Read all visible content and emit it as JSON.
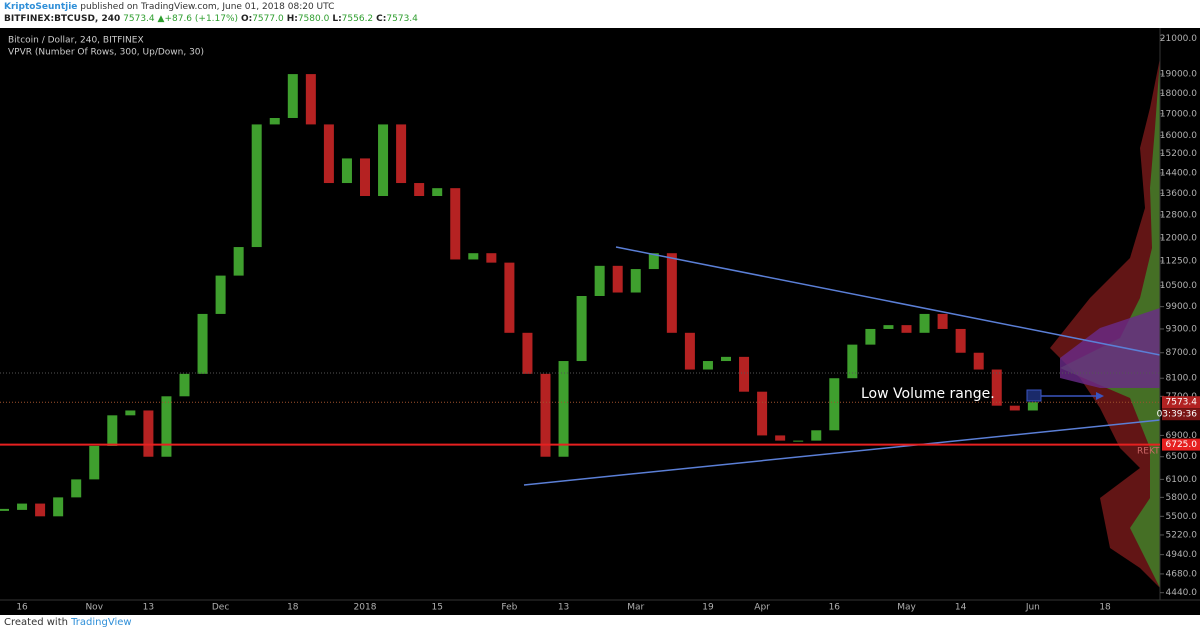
{
  "header": {
    "author": "KriptoSeuntjie",
    "published": "published on TradingView.com, June 01, 2018 08:20 UTC",
    "symbol": "BITFINEX:BTCUSD, 240",
    "price": "7573.4",
    "arrow": "▲",
    "change": "+87.6 (+1.17%)",
    "ohlc": [
      {
        "key": "O:",
        "value": "7577.0"
      },
      {
        "key": "H:",
        "value": "7580.0"
      },
      {
        "key": "L:",
        "value": "7556.2"
      },
      {
        "key": "C:",
        "value": "7573.4"
      }
    ]
  },
  "chart_data": {
    "type": "candlestick",
    "title": "Bitcoin / Dollar, 240, BITFINEX",
    "subtitle": "VPVR (Number Of Rows, 300, Up/Down, 30)",
    "categories": [
      null,
      "16",
      null,
      null,
      null,
      "Nov",
      null,
      null,
      "13",
      null,
      null,
      null,
      "Dec",
      null,
      null,
      null,
      "18",
      null,
      null,
      null,
      "2018",
      null,
      null,
      null,
      "15",
      null,
      null,
      null,
      "Feb",
      null,
      null,
      "13",
      null,
      null,
      null,
      "Mar",
      null,
      null,
      null,
      "19",
      null,
      null,
      "Apr",
      null,
      null,
      null,
      "16",
      null,
      null,
      null,
      "May",
      null,
      null,
      "14",
      null,
      null,
      null,
      "Jun",
      null,
      null,
      null,
      "18",
      null,
      null
    ],
    "values": [
      5600,
      5700,
      5500,
      5800,
      6100,
      6700,
      7300,
      7400,
      6500,
      7700,
      8200,
      9700,
      10800,
      11700,
      16500,
      16800,
      19000,
      16500,
      14000,
      15000,
      13500,
      16500,
      14000,
      13500,
      13800,
      11300,
      11500,
      11200,
      9200,
      8200,
      6500,
      8500,
      10200,
      11100,
      10300,
      11000,
      11500,
      9200,
      8300,
      8500,
      8600,
      7800,
      6900,
      6800,
      6800,
      7000,
      8100,
      8900,
      9300,
      9400,
      9200,
      9700,
      9300,
      8700,
      8300,
      7500,
      7400,
      7573.4,
      null,
      null,
      null,
      null,
      null,
      null
    ],
    "colors": {
      "up": "#3f9f2e",
      "down": "#b52222"
    },
    "log_scale": true,
    "grid": false,
    "ylim": [
      4350,
      21500
    ],
    "yticks": [
      {
        "value": 21000,
        "label": "21000.0"
      },
      {
        "value": 19000,
        "label": "19000.0"
      },
      {
        "value": 18000,
        "label": "18000.0"
      },
      {
        "value": 17000,
        "label": "17000.0"
      },
      {
        "value": 16000,
        "label": "16000.0"
      },
      {
        "value": 15200,
        "label": "15200.0"
      },
      {
        "value": 14400,
        "label": "14400.0"
      },
      {
        "value": 13600,
        "label": "13600.0"
      },
      {
        "value": 12800,
        "label": "12800.0"
      },
      {
        "value": 12000,
        "label": "12000.0"
      },
      {
        "value": 11250,
        "label": "11250.0"
      },
      {
        "value": 10500,
        "label": "10500.0"
      },
      {
        "value": 9900,
        "label": "9900.0"
      },
      {
        "value": 9300,
        "label": "9300.0"
      },
      {
        "value": 8700,
        "label": "8700.0"
      },
      {
        "value": 8100,
        "label": "8100.0"
      },
      {
        "value": 7700,
        "label": "7700.0"
      },
      {
        "value": 6900,
        "label": "6900.0"
      },
      {
        "value": 6500,
        "label": "6500.0"
      },
      {
        "value": 6100,
        "label": "6100.0"
      },
      {
        "value": 5800,
        "label": "5800.0"
      },
      {
        "value": 5500,
        "label": "5500.0"
      },
      {
        "value": 5220,
        "label": "5220.0"
      },
      {
        "value": 4940,
        "label": "4940.0"
      },
      {
        "value": 4680,
        "label": "4680.0"
      },
      {
        "value": 4440,
        "label": "4440.0"
      }
    ],
    "last_price": 7573.4,
    "countdown": "03:39:36",
    "level": {
      "value": 6725,
      "label": "6725.0"
    },
    "annotations": [
      "Low Volume range.",
      "REKT"
    ]
  },
  "footer": {
    "created": "Created with",
    "brand": "TradingView"
  }
}
